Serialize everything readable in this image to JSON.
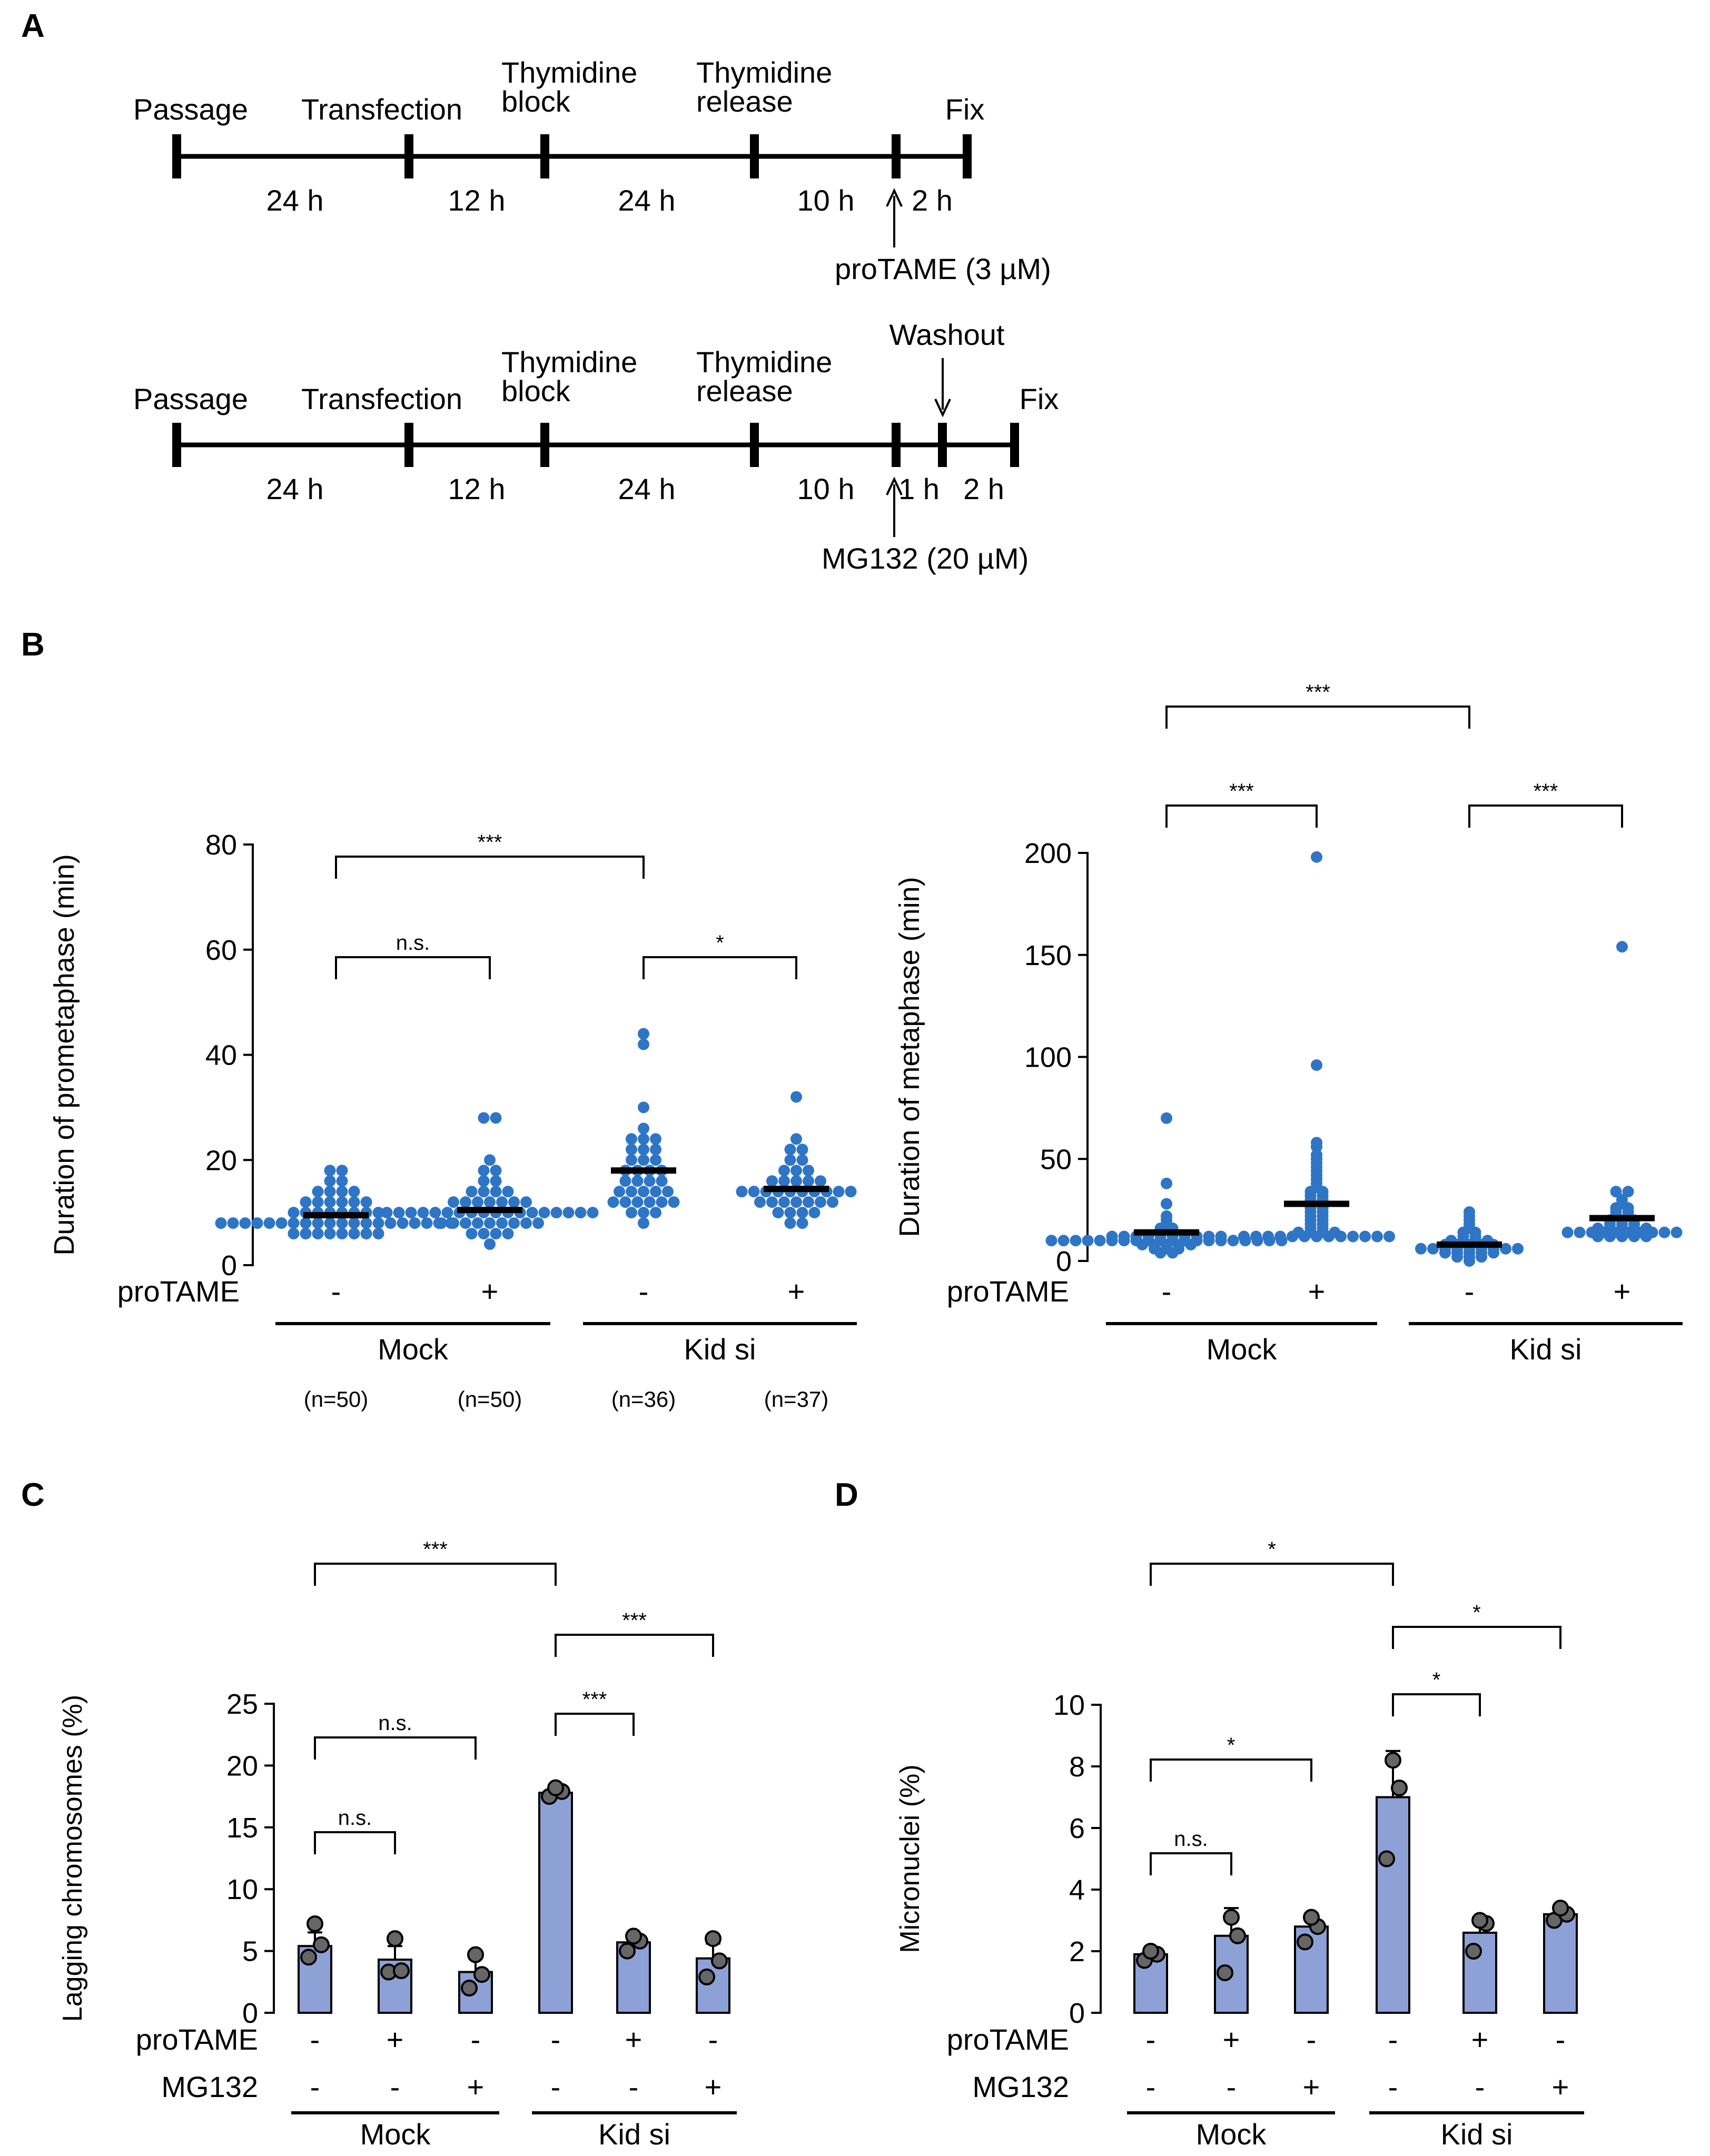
{
  "panels": {
    "A": "A",
    "B": "B",
    "C": "C",
    "D": "D"
  },
  "timeline1": {
    "labels": {
      "passage": "Passage",
      "transfection": "Transfection",
      "thy_block_1": "Thymidine",
      "thy_block_2": "block",
      "thy_release_1": "Thymidine",
      "thy_release_2": "release",
      "fix": "Fix"
    },
    "durations": [
      "24 h",
      "12 h",
      "24 h",
      "10 h",
      "2 h"
    ],
    "drug": "proTAME (3 µM)"
  },
  "timeline2": {
    "labels": {
      "passage": "Passage",
      "transfection": "Transfection",
      "thy_block_1": "Thymidine",
      "thy_block_2": "block",
      "thy_release_1": "Thymidine",
      "thy_release_2": "release",
      "washout": "Washout",
      "fix": "Fix"
    },
    "durations": [
      "24 h",
      "12 h",
      "24 h",
      "10 h",
      "1 h",
      "2 h"
    ],
    "drug": "MG132 (20 µM)"
  },
  "chart_data": [
    {
      "id": "B-prometaphase",
      "type": "scatter",
      "ylabel": "Duration of prometaphase (min)",
      "ylim": [
        0,
        80
      ],
      "yticks": [
        0,
        20,
        40,
        60,
        80
      ],
      "row_label": "proTAME",
      "conditions": [
        "-",
        "+",
        "-",
        "+"
      ],
      "groups": [
        "Mock",
        "Kid si"
      ],
      "n_labels": [
        "(n=50)",
        "(n=50)",
        "(n=36)",
        "(n=37)"
      ],
      "means": [
        9.5,
        10.5,
        18,
        14.5
      ],
      "series": [
        {
          "name": "Mock -",
          "values": [
            8,
            8,
            8,
            8,
            8,
            8,
            8,
            8,
            8,
            8,
            8,
            8,
            8,
            8,
            8,
            8,
            8,
            8,
            8,
            8,
            6,
            6,
            6,
            6,
            6,
            6,
            6,
            6,
            10,
            10,
            10,
            10,
            10,
            10,
            10,
            10,
            12,
            12,
            12,
            12,
            12,
            12,
            14,
            14,
            14,
            14,
            16,
            16,
            18,
            18
          ]
        },
        {
          "name": "Mock +",
          "values": [
            10,
            10,
            10,
            10,
            10,
            10,
            10,
            10,
            10,
            10,
            10,
            10,
            10,
            10,
            10,
            10,
            10,
            10,
            8,
            8,
            8,
            8,
            8,
            8,
            8,
            8,
            8,
            12,
            12,
            12,
            12,
            12,
            12,
            12,
            6,
            6,
            6,
            6,
            14,
            14,
            14,
            14,
            16,
            16,
            18,
            18,
            4,
            28,
            28,
            20
          ]
        },
        {
          "name": "Kid si -",
          "values": [
            12,
            12,
            12,
            12,
            12,
            12,
            14,
            14,
            14,
            14,
            14,
            16,
            16,
            16,
            16,
            18,
            18,
            18,
            18,
            20,
            20,
            20,
            22,
            22,
            22,
            24,
            24,
            24,
            10,
            10,
            10,
            8,
            26,
            30,
            42,
            44
          ]
        },
        {
          "name": "Kid si +",
          "values": [
            14,
            14,
            14,
            14,
            14,
            14,
            14,
            14,
            14,
            14,
            12,
            12,
            12,
            12,
            12,
            12,
            12,
            16,
            16,
            16,
            16,
            16,
            10,
            10,
            10,
            10,
            8,
            8,
            18,
            18,
            18,
            20,
            20,
            22,
            22,
            24,
            32
          ]
        }
      ],
      "brackets": [
        {
          "from": 0,
          "to": 2,
          "label": "***"
        },
        {
          "from": 0,
          "to": 1,
          "label": "n.s."
        },
        {
          "from": 2,
          "to": 3,
          "label": "*"
        }
      ]
    },
    {
      "id": "B-metaphase",
      "type": "scatter",
      "ylabel": "Duration of metaphase (min)",
      "ylim": [
        0,
        200
      ],
      "yticks": [
        0,
        50,
        100,
        150,
        200
      ],
      "row_label": "proTAME",
      "conditions": [
        "-",
        "+",
        "-",
        "+"
      ],
      "groups": [
        "Mock",
        "Kid si"
      ],
      "means": [
        14,
        28,
        8,
        21
      ],
      "series": [
        {
          "name": "Mock -",
          "values": [
            10,
            10,
            10,
            10,
            10,
            10,
            10,
            10,
            10,
            10,
            10,
            10,
            10,
            10,
            10,
            10,
            10,
            10,
            10,
            10,
            12,
            12,
            12,
            12,
            12,
            12,
            12,
            12,
            12,
            8,
            8,
            8,
            8,
            8,
            6,
            6,
            6,
            4,
            4,
            14,
            14,
            16,
            16,
            18,
            20,
            22,
            28,
            38,
            70,
            12
          ]
        },
        {
          "name": "Mock +",
          "values": [
            12,
            12,
            12,
            12,
            12,
            12,
            12,
            12,
            12,
            12,
            12,
            12,
            12,
            14,
            14,
            14,
            14,
            16,
            16,
            18,
            18,
            20,
            20,
            22,
            22,
            24,
            24,
            26,
            26,
            28,
            28,
            30,
            30,
            32,
            32,
            34,
            34,
            36,
            38,
            40,
            42,
            44,
            46,
            48,
            50,
            52,
            56,
            58,
            96,
            198
          ]
        },
        {
          "name": "Kid si -",
          "values": [
            6,
            6,
            6,
            6,
            6,
            6,
            6,
            6,
            6,
            4,
            4,
            4,
            4,
            4,
            8,
            8,
            8,
            8,
            8,
            10,
            10,
            10,
            10,
            2,
            2,
            2,
            12,
            12,
            14,
            14,
            16,
            18,
            20,
            22,
            24,
            0
          ]
        },
        {
          "name": "Kid si +",
          "values": [
            14,
            14,
            14,
            14,
            14,
            14,
            14,
            14,
            14,
            14,
            12,
            12,
            12,
            12,
            12,
            16,
            16,
            16,
            16,
            16,
            18,
            18,
            18,
            20,
            20,
            20,
            22,
            22,
            24,
            24,
            26,
            26,
            28,
            30,
            34,
            34,
            154
          ]
        }
      ],
      "brackets": [
        {
          "from": 0,
          "to": 2,
          "label": "***"
        },
        {
          "from": 0,
          "to": 1,
          "label": "***"
        },
        {
          "from": 2,
          "to": 3,
          "label": "***"
        }
      ]
    },
    {
      "id": "C-lagging",
      "type": "bar",
      "ylabel": "Lagging chromosomes  (%)",
      "ylim": [
        0,
        25
      ],
      "yticks": [
        0,
        5,
        10,
        15,
        20,
        25
      ],
      "row_labels": [
        "proTAME",
        "MG132"
      ],
      "protame": [
        "-",
        "+",
        "-",
        "-",
        "+",
        "-"
      ],
      "mg132": [
        "-",
        "-",
        "+",
        "-",
        "-",
        "+"
      ],
      "groups": [
        "Mock",
        "Kid si"
      ],
      "values": [
        5.4,
        4.3,
        3.3,
        17.8,
        5.7,
        4.4
      ],
      "errors": [
        1.1,
        1.1,
        1.2,
        0.4,
        0.6,
        1.2
      ],
      "points": [
        [
          4.5,
          5.5,
          7.2
        ],
        [
          3.3,
          3.4,
          6.0
        ],
        [
          2.0,
          3.1,
          4.7
        ],
        [
          17.5,
          17.9,
          18.2
        ],
        [
          5.0,
          5.8,
          6.2
        ],
        [
          2.9,
          4.2,
          6.0
        ]
      ],
      "brackets": [
        {
          "from": 0,
          "to": 3,
          "label": "***"
        },
        {
          "from": 3,
          "to": 5,
          "label": "***"
        },
        {
          "from": 3,
          "to": 4,
          "label": "***"
        },
        {
          "from": 0,
          "to": 2,
          "label": "n.s."
        },
        {
          "from": 0,
          "to": 1,
          "label": "n.s."
        }
      ]
    },
    {
      "id": "D-micronuclei",
      "type": "bar",
      "ylabel": "Micronuclei (%)",
      "ylim": [
        0,
        10
      ],
      "yticks": [
        0,
        2,
        4,
        6,
        8,
        10
      ],
      "row_labels": [
        "proTAME",
        "MG132"
      ],
      "protame": [
        "-",
        "+",
        "-",
        "-",
        "+",
        "-"
      ],
      "mg132": [
        "-",
        "-",
        "+",
        "-",
        "-",
        "+"
      ],
      "groups": [
        "Mock",
        "Kid si"
      ],
      "values": [
        1.9,
        2.5,
        2.8,
        7.0,
        2.6,
        3.2
      ],
      "errors": [
        0.2,
        0.9,
        0.4,
        1.5,
        0.4,
        0.3
      ],
      "points": [
        [
          1.7,
          1.9,
          2.0
        ],
        [
          1.3,
          2.5,
          3.1
        ],
        [
          2.3,
          2.8,
          3.1
        ],
        [
          5.0,
          7.3,
          8.2
        ],
        [
          2.0,
          2.9,
          3.0
        ],
        [
          3.0,
          3.2,
          3.4
        ]
      ],
      "brackets": [
        {
          "from": 0,
          "to": 3,
          "label": "*"
        },
        {
          "from": 3,
          "to": 5,
          "label": "*"
        },
        {
          "from": 3,
          "to": 4,
          "label": "*"
        },
        {
          "from": 0,
          "to": 2,
          "label": "*"
        },
        {
          "from": 0,
          "to": 1,
          "label": "n.s."
        }
      ]
    }
  ]
}
